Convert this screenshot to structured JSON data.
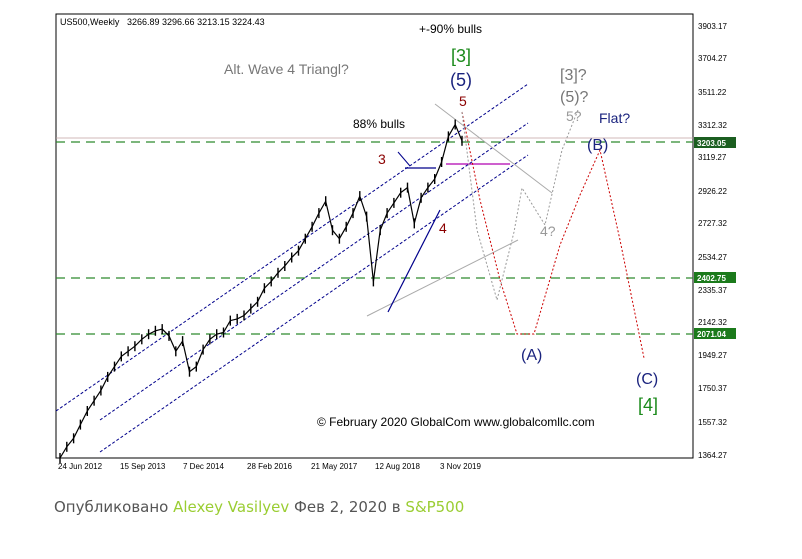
{
  "header": {
    "symbol": "US500,Weekly",
    "ohlc": "3266.89 3296.66 3213.15 3224.43"
  },
  "chart_data": {
    "type": "line",
    "title": "US500,Weekly",
    "price_scale": [
      "3903.17",
      "3704.27",
      "3511.22",
      "3312.32",
      "3119.27",
      "2926.22",
      "2727.32",
      "2534.27",
      "2335.37",
      "2142.32",
      "1949.27",
      "1750.37",
      "1557.32",
      "1364.27"
    ],
    "date_labels": [
      "24 Jun 2012",
      "15 Sep 2013",
      "7 Dec 2014",
      "28 Feb 2016",
      "21 May 2017",
      "12 Aug 2018",
      "3 Nov 2019"
    ],
    "current_price": "3203.05",
    "level_lines": [
      "2402.75",
      "2071.04"
    ],
    "series": [
      {
        "values": [
          1364,
          1430,
          1480,
          1560,
          1640,
          1700,
          1760,
          1840,
          1900,
          1960,
          1990,
          2020,
          2060,
          2090,
          2110,
          2120,
          2080,
          1990,
          2050,
          1870,
          1900,
          2000,
          2060,
          2090,
          2100,
          2170,
          2180,
          2200,
          2240,
          2280,
          2360,
          2400,
          2450,
          2490,
          2540,
          2580,
          2650,
          2720,
          2800,
          2870,
          2700,
          2650,
          2720,
          2800,
          2900,
          2780,
          2400,
          2700,
          2800,
          2860,
          2920,
          2950,
          2740,
          2890,
          2950,
          3000,
          3100,
          3250,
          3320,
          3224
        ]
      }
    ]
  },
  "annotations": {
    "top_note": "+-90% bulls",
    "alt_wave": "Alt. Wave 4 Triangl?",
    "bulls88": "88% bulls",
    "w3_green": "[3]",
    "w5_blue": "(5)",
    "w5_red": "5",
    "w3_red": "3",
    "w4_red": "4",
    "gray_3": "[3]?",
    "gray_5": "(5)?",
    "gray_5b": "5?",
    "gray_4": "4?",
    "flat": "Flat?",
    "B": "(B)",
    "A": "(A)",
    "C": "(C)",
    "w4_green": "[4]",
    "copyright": "© February 2020 GlobalCom www.globalcomllc.com"
  },
  "caption": {
    "prefix": "Опубликовано",
    "author": "Alexey Vasilyev",
    "date_in": "Фев 2, 2020 в",
    "symbol": "S&P500"
  },
  "colors": {
    "price": "#000000",
    "channel": "#00008b",
    "level_line": "#008000",
    "red_path": "#cc0000",
    "gray_path": "#999999",
    "blue_label": "#1a237e",
    "green_label": "#1b8a1b",
    "red_label": "#8b0000"
  }
}
